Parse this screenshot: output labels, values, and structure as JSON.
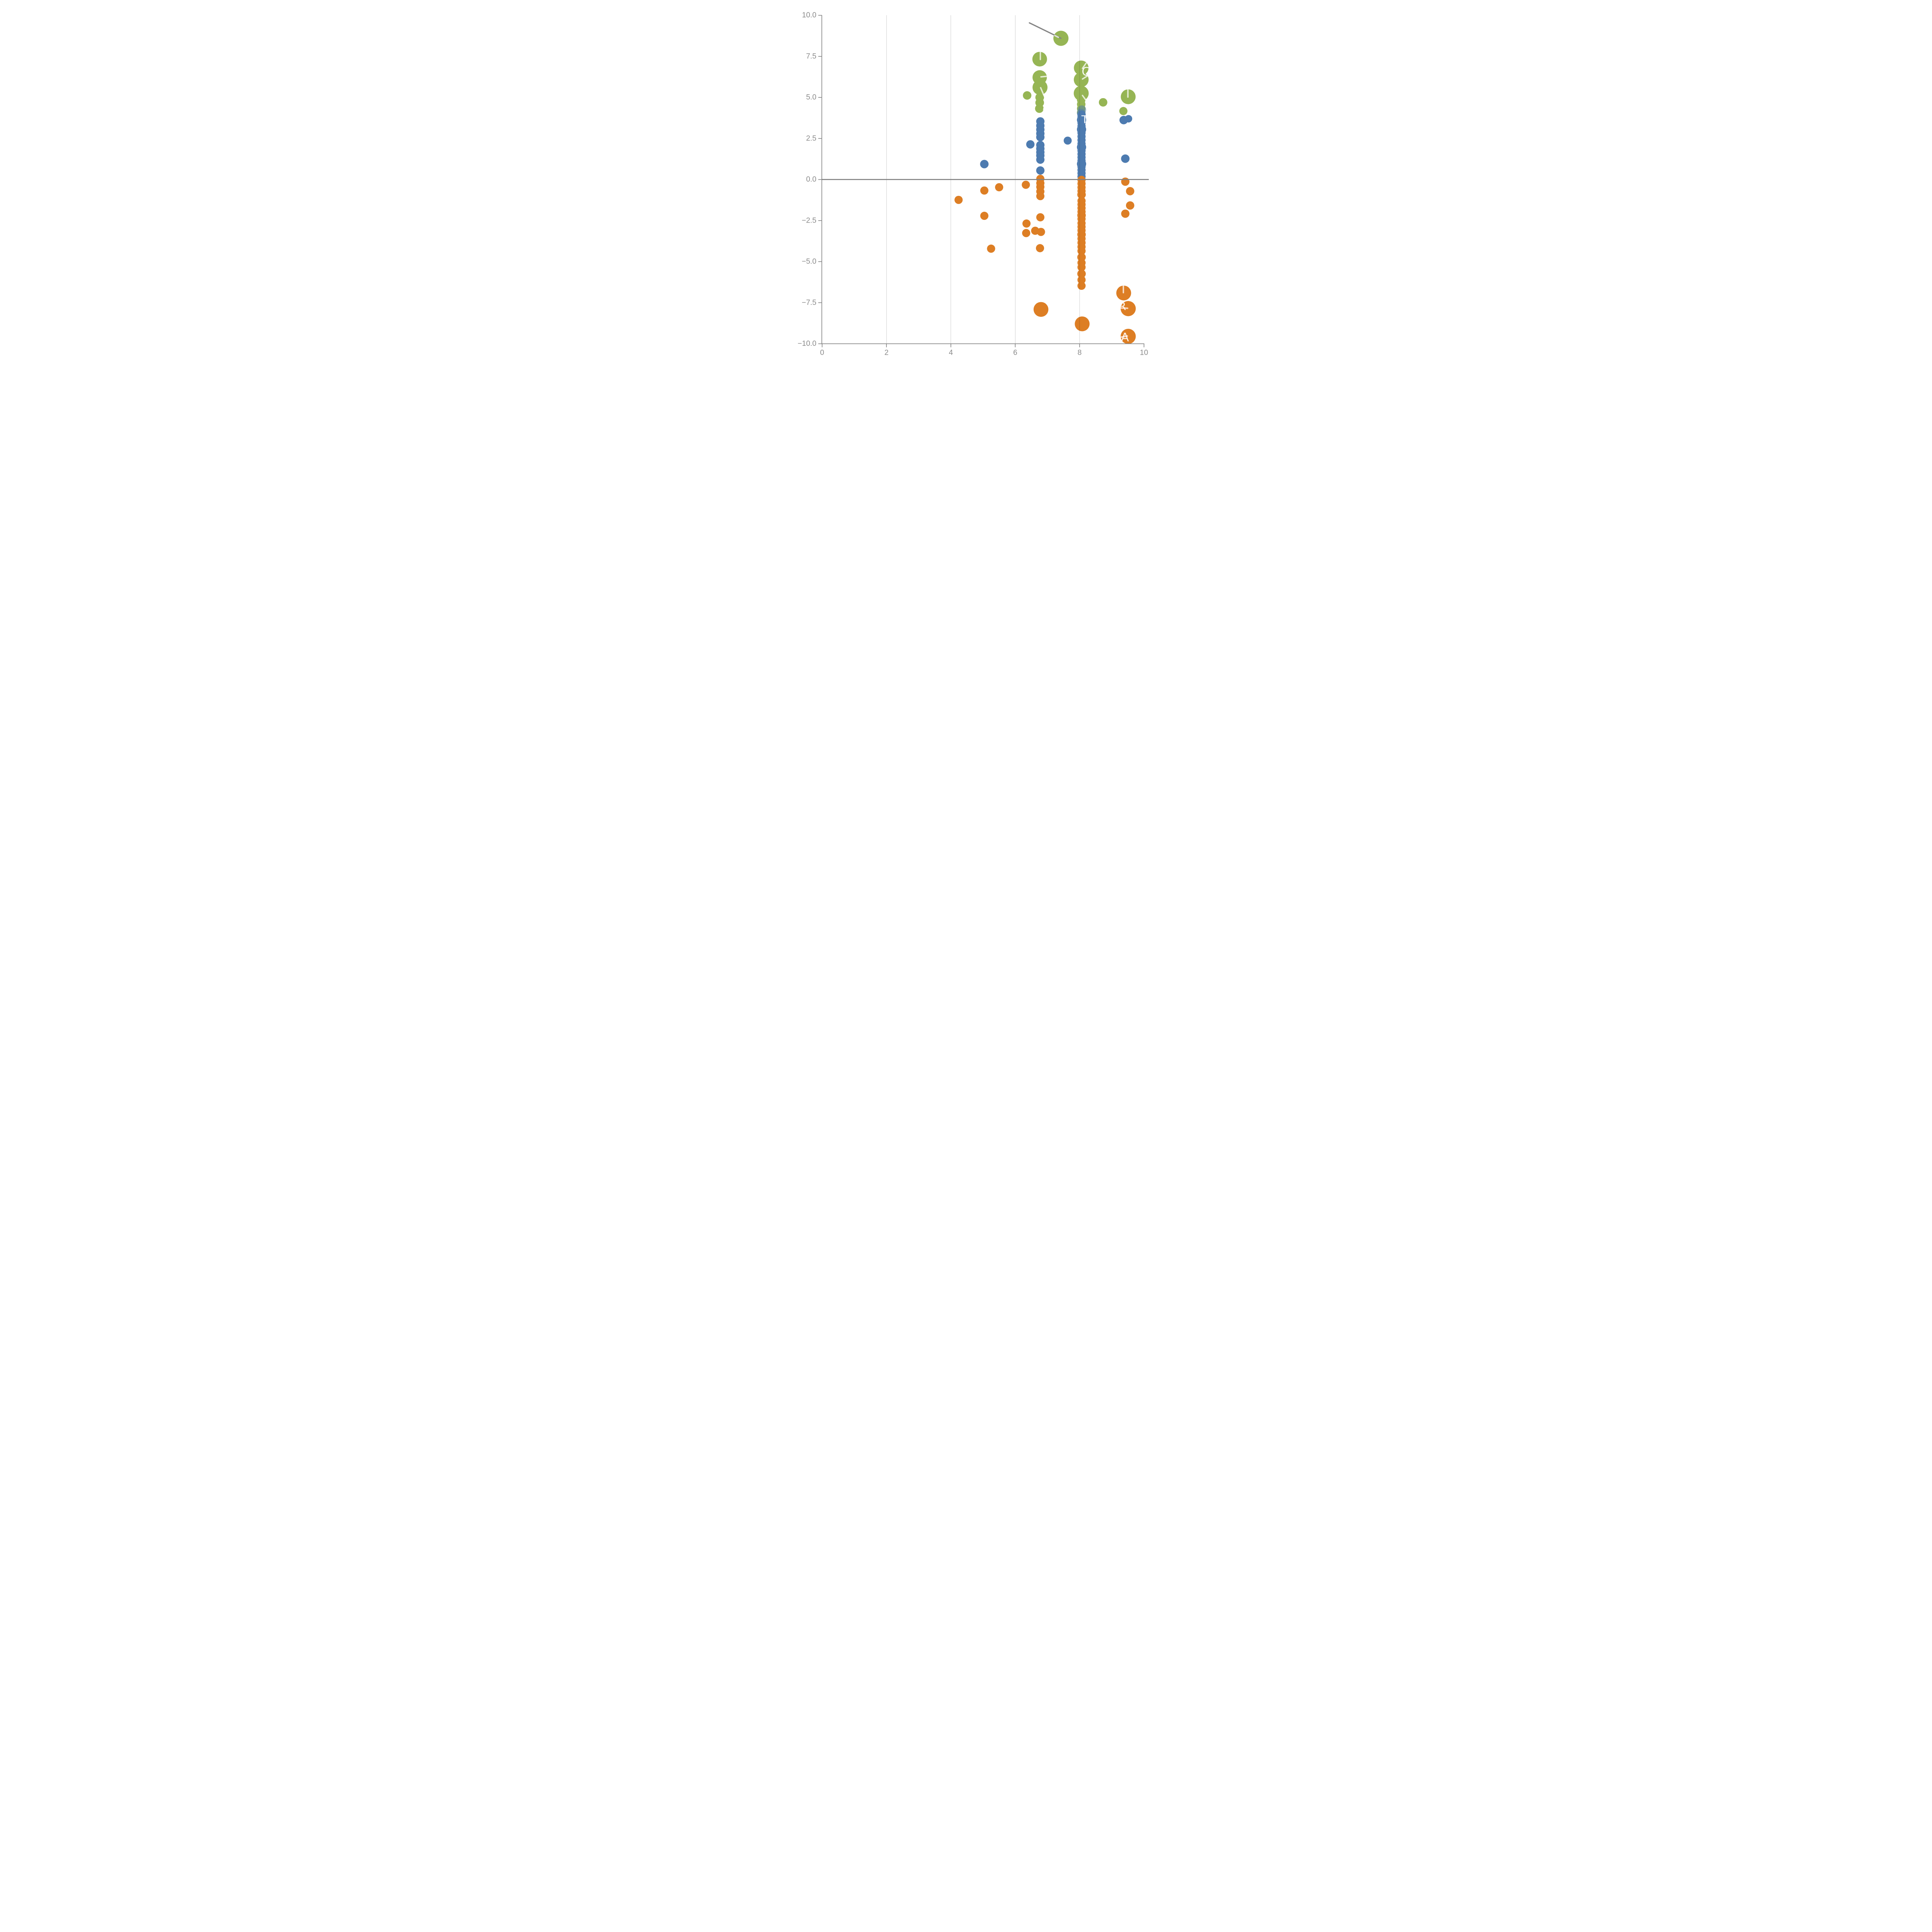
{
  "chart_data": {
    "type": "scatter",
    "title": "",
    "xlabel": "",
    "ylabel": "",
    "xlim": [
      0,
      10
    ],
    "ylim": [
      -10,
      10
    ],
    "x_ticks": [
      {
        "v": 0,
        "label": "0"
      },
      {
        "v": 2,
        "label": "2"
      },
      {
        "v": 4,
        "label": "4"
      },
      {
        "v": 6,
        "label": "6"
      },
      {
        "v": 8,
        "label": "8"
      },
      {
        "v": 10,
        "label": "10"
      }
    ],
    "y_ticks": [
      {
        "v": 10,
        "label": "10.0"
      },
      {
        "v": 7.5,
        "label": "7.5"
      },
      {
        "v": 5,
        "label": "5.0"
      },
      {
        "v": 2.5,
        "label": "2.5"
      },
      {
        "v": 0,
        "label": "0.0"
      },
      {
        "v": -2.5,
        "label": "−2.5"
      },
      {
        "v": -5,
        "label": "−5.0"
      },
      {
        "v": -7.5,
        "label": "−7.5"
      },
      {
        "v": -10,
        "label": "−10.0"
      }
    ],
    "gridlines_x": [
      2,
      4,
      6,
      8
    ],
    "zero_line_y": 0,
    "grid_on": true,
    "legend": "none",
    "colors": {
      "green": "#96B554",
      "blue": "#4D7BB0",
      "orange": "#DD7E24",
      "axis": "#808080",
      "tick_label": "#8c8c8c",
      "gridline": "rgba(0,0,0,0.32)",
      "leader_gray": "#848484",
      "leader_white": "rgba(255,255,255,0.75)",
      "leader_pink": "rgba(255,230,218,0.85)"
    },
    "series": [
      {
        "name": "green",
        "points": [
          {
            "x": 7.42,
            "y": 8.6,
            "r": 98
          },
          {
            "x": 6.76,
            "y": 7.33,
            "r": 95
          },
          {
            "x": 6.76,
            "y": 6.22,
            "r": 93
          },
          {
            "x": 6.77,
            "y": 5.61,
            "r": 97
          },
          {
            "x": 6.76,
            "y": 5.0,
            "r": 56
          },
          {
            "x": 6.76,
            "y": 4.68,
            "r": 56
          },
          {
            "x": 6.75,
            "y": 4.32,
            "r": 56
          },
          {
            "x": 6.37,
            "y": 5.12,
            "r": 55
          },
          {
            "x": 8.05,
            "y": 6.8,
            "r": 95
          },
          {
            "x": 8.05,
            "y": 6.08,
            "r": 96
          },
          {
            "x": 8.05,
            "y": 5.25,
            "r": 97
          },
          {
            "x": 8.05,
            "y": 4.85,
            "r": 55
          },
          {
            "x": 8.05,
            "y": 4.58,
            "r": 55
          },
          {
            "x": 8.05,
            "y": 4.32,
            "r": 55
          },
          {
            "x": 8.05,
            "y": 4.08,
            "r": 55
          },
          {
            "x": 8.73,
            "y": 4.7,
            "r": 55
          },
          {
            "x": 9.51,
            "y": 5.04,
            "r": 96
          },
          {
            "x": 9.36,
            "y": 4.17,
            "r": 53
          }
        ]
      },
      {
        "name": "blue",
        "points": [
          {
            "x": 5.04,
            "y": 0.94,
            "r": 55
          },
          {
            "x": 6.47,
            "y": 2.14,
            "r": 54
          },
          {
            "x": 7.63,
            "y": 2.37,
            "r": 52
          },
          {
            "x": 6.78,
            "y": 3.54,
            "r": 54
          },
          {
            "x": 6.78,
            "y": 3.28,
            "r": 54
          },
          {
            "x": 6.78,
            "y": 3.04,
            "r": 54
          },
          {
            "x": 6.78,
            "y": 2.8,
            "r": 54
          },
          {
            "x": 6.78,
            "y": 2.58,
            "r": 54
          },
          {
            "x": 6.78,
            "y": 2.1,
            "r": 54
          },
          {
            "x": 6.78,
            "y": 1.88,
            "r": 54
          },
          {
            "x": 6.78,
            "y": 1.66,
            "r": 54
          },
          {
            "x": 6.78,
            "y": 1.46,
            "r": 54
          },
          {
            "x": 6.78,
            "y": 1.21,
            "r": 54
          },
          {
            "x": 6.78,
            "y": 0.55,
            "r": 54
          },
          {
            "x": 9.37,
            "y": 3.62,
            "r": 55
          },
          {
            "x": 9.52,
            "y": 3.7,
            "r": 48
          },
          {
            "x": 9.42,
            "y": 1.27,
            "r": 55
          },
          {
            "x": 8.06,
            "y": 0.18,
            "r": 53
          },
          {
            "x": 8.06,
            "y": 0.38,
            "r": 53
          },
          {
            "x": 8.06,
            "y": 0.58,
            "r": 53
          },
          {
            "x": 8.06,
            "y": 0.78,
            "r": 53
          },
          {
            "x": 8.06,
            "y": 0.95,
            "r": 60
          },
          {
            "x": 8.06,
            "y": 1.15,
            "r": 53
          },
          {
            "x": 8.06,
            "y": 1.35,
            "r": 53
          },
          {
            "x": 8.06,
            "y": 1.55,
            "r": 53
          },
          {
            "x": 8.06,
            "y": 1.76,
            "r": 53
          },
          {
            "x": 8.06,
            "y": 1.97,
            "r": 60
          },
          {
            "x": 8.06,
            "y": 2.18,
            "r": 53
          },
          {
            "x": 8.06,
            "y": 2.4,
            "r": 53
          },
          {
            "x": 8.06,
            "y": 2.62,
            "r": 53
          },
          {
            "x": 8.06,
            "y": 2.84,
            "r": 53
          },
          {
            "x": 8.06,
            "y": 3.05,
            "r": 60
          },
          {
            "x": 8.06,
            "y": 3.25,
            "r": 53
          },
          {
            "x": 8.06,
            "y": 3.45,
            "r": 53
          },
          {
            "x": 8.06,
            "y": 3.63,
            "r": 60
          },
          {
            "x": 8.06,
            "y": 3.8,
            "r": 53
          },
          {
            "x": 8.06,
            "y": 3.95,
            "r": 54
          },
          {
            "x": 8.07,
            "y": 4.25,
            "r": 56,
            "opacity": 0.5
          },
          {
            "x": 8.05,
            "y": 4.05,
            "r": 56,
            "opacity": 0.5
          }
        ]
      },
      {
        "name": "orange",
        "points": [
          {
            "x": 6.78,
            "y": 0.04,
            "r": 53
          },
          {
            "x": 6.78,
            "y": -0.22,
            "r": 53
          },
          {
            "x": 6.78,
            "y": -0.45,
            "r": 53
          },
          {
            "x": 6.78,
            "y": -0.73,
            "r": 53
          },
          {
            "x": 6.78,
            "y": -1.01,
            "r": 53
          },
          {
            "x": 6.78,
            "y": -2.3,
            "r": 53
          },
          {
            "x": 6.35,
            "y": -2.68,
            "r": 53
          },
          {
            "x": 6.34,
            "y": -3.26,
            "r": 53
          },
          {
            "x": 6.62,
            "y": -3.12,
            "r": 53
          },
          {
            "x": 6.8,
            "y": -3.19,
            "r": 53
          },
          {
            "x": 6.77,
            "y": -4.18,
            "r": 53
          },
          {
            "x": 6.33,
            "y": -0.32,
            "r": 53
          },
          {
            "x": 4.24,
            "y": -1.24,
            "r": 53
          },
          {
            "x": 5.04,
            "y": -0.67,
            "r": 53
          },
          {
            "x": 5.5,
            "y": -0.47,
            "r": 53
          },
          {
            "x": 5.04,
            "y": -2.21,
            "r": 53
          },
          {
            "x": 5.25,
            "y": -4.21,
            "r": 53
          },
          {
            "x": 8.06,
            "y": -0.02,
            "r": 53
          },
          {
            "x": 8.06,
            "y": -0.25,
            "r": 53
          },
          {
            "x": 8.06,
            "y": -0.48,
            "r": 53
          },
          {
            "x": 8.06,
            "y": -0.7,
            "r": 53
          },
          {
            "x": 8.06,
            "y": -0.92,
            "r": 55
          },
          {
            "x": 8.06,
            "y": -1.3,
            "r": 53
          },
          {
            "x": 8.06,
            "y": -1.52,
            "r": 53
          },
          {
            "x": 8.06,
            "y": -1.74,
            "r": 53
          },
          {
            "x": 8.06,
            "y": -1.96,
            "r": 53
          },
          {
            "x": 8.06,
            "y": -2.18,
            "r": 55
          },
          {
            "x": 8.06,
            "y": -2.4,
            "r": 53
          },
          {
            "x": 8.06,
            "y": -2.66,
            "r": 53
          },
          {
            "x": 8.06,
            "y": -2.88,
            "r": 53
          },
          {
            "x": 8.06,
            "y": -3.1,
            "r": 53
          },
          {
            "x": 8.06,
            "y": -3.35,
            "r": 55
          },
          {
            "x": 8.06,
            "y": -3.6,
            "r": 53
          },
          {
            "x": 8.06,
            "y": -3.85,
            "r": 53
          },
          {
            "x": 8.06,
            "y": -4.1,
            "r": 53
          },
          {
            "x": 8.06,
            "y": -4.35,
            "r": 53
          },
          {
            "x": 8.06,
            "y": -4.73,
            "r": 55
          },
          {
            "x": 8.06,
            "y": -5.07,
            "r": 53
          },
          {
            "x": 8.06,
            "y": -5.34,
            "r": 53
          },
          {
            "x": 8.06,
            "y": -5.74,
            "r": 55
          },
          {
            "x": 8.06,
            "y": -6.11,
            "r": 53
          },
          {
            "x": 8.06,
            "y": -6.47,
            "r": 53
          },
          {
            "x": 9.42,
            "y": -0.13,
            "r": 54
          },
          {
            "x": 9.57,
            "y": -0.71,
            "r": 54
          },
          {
            "x": 9.57,
            "y": -1.58,
            "r": 54
          },
          {
            "x": 9.42,
            "y": -2.08,
            "r": 54
          },
          {
            "x": 6.8,
            "y": -7.91,
            "r": 96
          },
          {
            "x": 8.08,
            "y": -8.79,
            "r": 96
          },
          {
            "x": 9.37,
            "y": -6.91,
            "r": 96
          },
          {
            "x": 9.51,
            "y": -7.86,
            "r": 98
          },
          {
            "x": 9.51,
            "y": -9.55,
            "r": 98
          }
        ]
      }
    ],
    "annotations": {
      "letters": [
        {
          "text": "C",
          "x": 8.19,
          "y": 6.55,
          "size": 150
        },
        {
          "text": "C",
          "x": 6.97,
          "y": 4.2,
          "size": 150
        },
        {
          "text": "T",
          "x": 8.16,
          "y": 3.66,
          "size": 140
        },
        {
          "text": "R",
          "x": 9.33,
          "y": -7.72,
          "size": 140
        },
        {
          "text": "A",
          "x": 9.41,
          "y": -9.62,
          "size": 150
        }
      ],
      "white_leaders": [
        {
          "x1": 6.78,
          "y1": 7.76,
          "x2": 6.78,
          "y2": 7.31
        },
        {
          "x1": 6.8,
          "y1": 6.25,
          "x2": 7.0,
          "y2": 6.29
        },
        {
          "x1": 6.79,
          "y1": 5.59,
          "x2": 6.9,
          "y2": 5.08
        },
        {
          "x1": 8.09,
          "y1": 6.77,
          "x2": 8.2,
          "y2": 7.08
        },
        {
          "x1": 8.25,
          "y1": 6.32,
          "x2": 8.09,
          "y2": 6.12
        },
        {
          "x1": 8.09,
          "y1": 5.12,
          "x2": 8.19,
          "y2": 4.85
        },
        {
          "x1": 9.5,
          "y1": 5.47,
          "x2": 9.5,
          "y2": 5.02
        },
        {
          "x1": 9.36,
          "y1": -6.44,
          "x2": 9.36,
          "y2": -6.89
        },
        {
          "x1": 7.23,
          "y1": 8.77,
          "x2": 7.34,
          "y2": 8.66
        }
      ],
      "pink_leaders": [
        {
          "x1": 9.28,
          "y1": -7.82,
          "x2": 9.49,
          "y2": -7.84
        },
        {
          "x1": 9.28,
          "y1": -9.6,
          "x2": 9.48,
          "y2": -9.53
        }
      ],
      "gray_leader": {
        "x1": 6.44,
        "y1": 9.54,
        "x2": 7.42,
        "y2": 8.6
      }
    }
  }
}
